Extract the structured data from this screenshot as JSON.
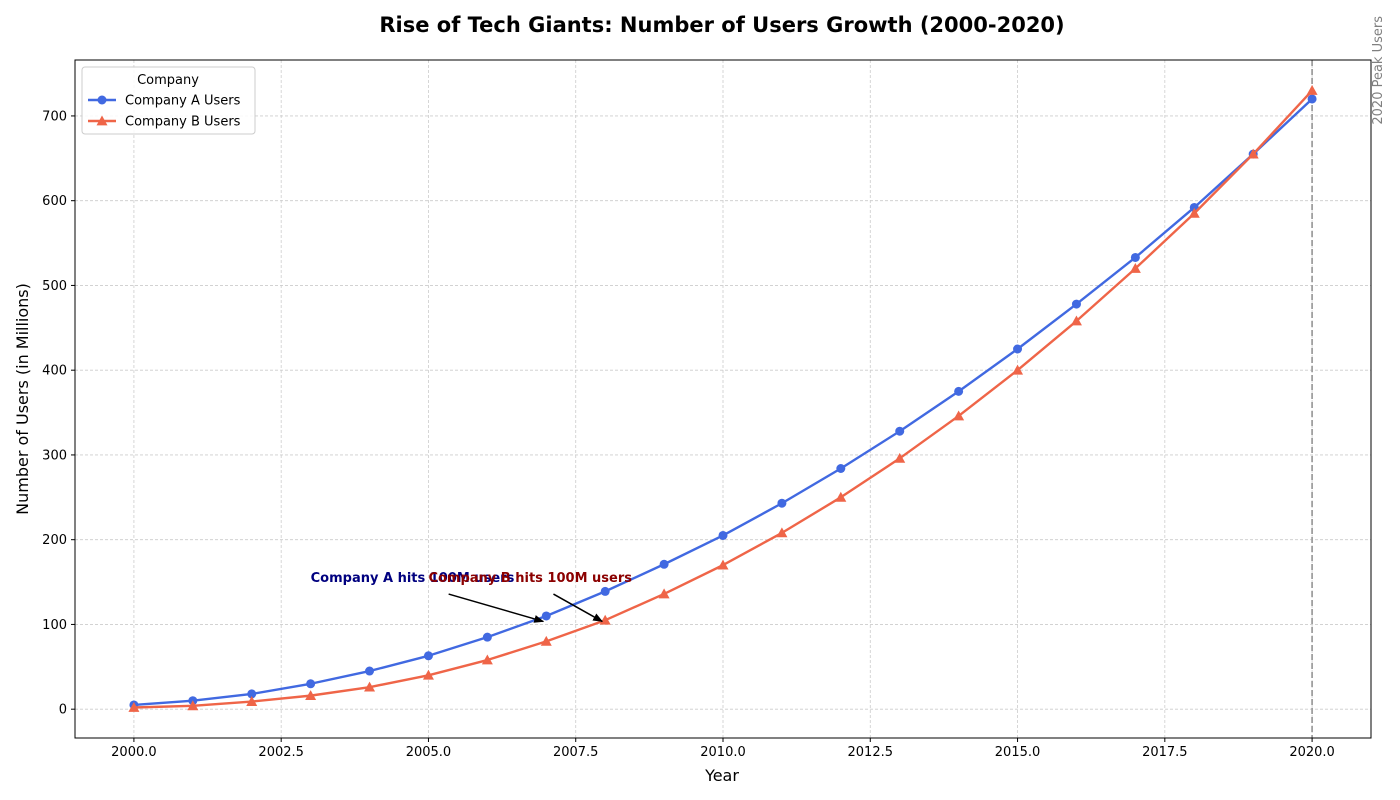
{
  "chart_data": {
    "type": "line",
    "title": "Rise of Tech Giants: Number of Users Growth (2000-2020)",
    "xlabel": "Year",
    "ylabel": "Number of Users (in Millions)",
    "xlim": [
      1999,
      2021
    ],
    "ylim": [
      -34,
      766
    ],
    "x_ticks": [
      2000,
      2002.5,
      2005,
      2007.5,
      2010,
      2012.5,
      2015,
      2017.5,
      2020
    ],
    "x_tick_labels": [
      "2000.0",
      "2002.5",
      "2005.0",
      "2007.5",
      "2010.0",
      "2012.5",
      "2015.0",
      "2017.5",
      "2020.0"
    ],
    "y_ticks": [
      0,
      100,
      200,
      300,
      400,
      500,
      600,
      700
    ],
    "y_tick_labels": [
      "0",
      "100",
      "200",
      "300",
      "400",
      "500",
      "600",
      "700"
    ],
    "grid": true,
    "legend": {
      "title": "Company",
      "placement": "upper-left"
    },
    "x": [
      2000,
      2001,
      2002,
      2003,
      2004,
      2005,
      2006,
      2007,
      2008,
      2009,
      2010,
      2011,
      2012,
      2013,
      2014,
      2015,
      2016,
      2017,
      2018,
      2019,
      2020
    ],
    "series": [
      {
        "name": "Company A Users",
        "color": "#4169e1",
        "marker": "circle",
        "values": [
          5,
          10,
          18,
          30,
          45,
          63,
          85,
          110,
          139,
          171,
          205,
          243,
          284,
          328,
          375,
          425,
          478,
          533,
          592,
          655,
          720
        ]
      },
      {
        "name": "Company B Users",
        "color": "#ef6548",
        "marker": "triangle",
        "values": [
          2,
          4,
          9,
          16,
          26,
          40,
          58,
          80,
          105,
          136,
          170,
          208,
          250,
          296,
          346,
          400,
          458,
          520,
          585,
          655,
          730
        ]
      }
    ],
    "annotations": [
      {
        "text": "Company A hits 100M users",
        "color": "#00007f",
        "xy": [
          2007,
          100
        ],
        "xytext": [
          2003,
          150
        ]
      },
      {
        "text": "Company B hits 100M users",
        "color": "#8b0000",
        "xy": [
          2008,
          100
        ],
        "xytext": [
          2005,
          150
        ]
      }
    ],
    "vline": {
      "x": 2020,
      "label": "2020 Peak Users",
      "color": "#a0a0a0"
    }
  }
}
